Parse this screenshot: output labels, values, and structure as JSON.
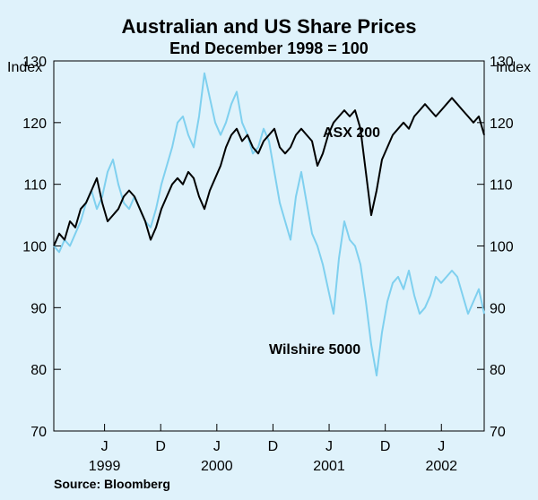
{
  "chart_data": {
    "type": "line",
    "title": "Australian and US Share Prices",
    "subtitle": "End December 1998 = 100",
    "y_unit_left": "Index",
    "y_unit_right": "Index",
    "ylim": [
      70,
      130
    ],
    "yticks": [
      70,
      80,
      90,
      100,
      110,
      120,
      130
    ],
    "xlim": [
      0,
      40
    ],
    "month_ticks": [
      {
        "label": "J",
        "month": 6
      },
      {
        "label": "D",
        "month": 12
      },
      {
        "label": "J",
        "month": 18
      },
      {
        "label": "D",
        "month": 24
      },
      {
        "label": "J",
        "month": 30
      },
      {
        "label": "D",
        "month": 36
      },
      {
        "label": "J",
        "month": 42
      }
    ],
    "year_labels": [
      {
        "label": "1999",
        "month": 6
      },
      {
        "label": "2000",
        "month": 18
      },
      {
        "label": "2001",
        "month": 30
      },
      {
        "label": "2002",
        "month": 42
      }
    ],
    "series": [
      {
        "name": "ASX 200",
        "color": "#000000",
        "x": [
          0,
          0.5,
          1,
          1.5,
          2,
          2.5,
          3,
          3.5,
          4,
          4.5,
          5,
          5.5,
          6,
          6.5,
          7,
          7.5,
          8,
          8.5,
          9,
          9.5,
          10,
          10.5,
          11,
          11.5,
          12,
          12.5,
          13,
          13.5,
          14,
          14.5,
          15,
          15.5,
          16,
          16.5,
          17,
          17.5,
          18,
          18.5,
          19,
          19.5,
          20,
          20.5,
          21,
          21.5,
          22,
          22.5,
          23,
          23.5,
          24,
          24.5,
          25,
          25.5,
          26,
          26.5,
          27,
          27.5,
          28,
          28.5,
          29,
          29.5,
          30,
          30.5,
          31,
          31.5,
          32,
          32.5,
          33,
          33.5,
          34,
          34.5,
          35,
          35.5,
          36,
          36.5,
          37,
          37.5,
          38,
          38.5,
          39,
          39.5,
          40
        ],
        "values": [
          100,
          102,
          101,
          104,
          103,
          106,
          107,
          109,
          111,
          107,
          104,
          105,
          106,
          108,
          109,
          108,
          106,
          104,
          101,
          103,
          106,
          108,
          110,
          111,
          110,
          112,
          111,
          108,
          106,
          109,
          111,
          113,
          116,
          118,
          119,
          117,
          118,
          116,
          115,
          117,
          118,
          119,
          116,
          115,
          116,
          118,
          119,
          118,
          117,
          113,
          115,
          118,
          120,
          121,
          122,
          121,
          122,
          119,
          112,
          105,
          109,
          114,
          116,
          118,
          119,
          120,
          119,
          121,
          122,
          123,
          122,
          121,
          122,
          123,
          124,
          123,
          122,
          121,
          120,
          121,
          118
        ]
      },
      {
        "name": "Wilshire 5000",
        "color": "#7fd0ef",
        "x": [
          0,
          0.5,
          1,
          1.5,
          2,
          2.5,
          3,
          3.5,
          4,
          4.5,
          5,
          5.5,
          6,
          6.5,
          7,
          7.5,
          8,
          8.5,
          9,
          9.5,
          10,
          10.5,
          11,
          11.5,
          12,
          12.5,
          13,
          13.5,
          14,
          14.5,
          15,
          15.5,
          16,
          16.5,
          17,
          17.5,
          18,
          18.5,
          19,
          19.5,
          20,
          20.5,
          21,
          21.5,
          22,
          22.5,
          23,
          23.5,
          24,
          24.5,
          25,
          25.5,
          26,
          26.5,
          27,
          27.5,
          28,
          28.5,
          29,
          29.5,
          30,
          30.5,
          31,
          31.5,
          32,
          32.5,
          33,
          33.5,
          34,
          34.5,
          35,
          35.5,
          36,
          36.5,
          37,
          37.5,
          38,
          38.5,
          39,
          39.5,
          40
        ],
        "values": [
          100,
          99,
          101,
          100,
          102,
          104,
          107,
          109,
          106,
          108,
          112,
          114,
          110,
          107,
          106,
          108,
          106,
          104,
          103,
          106,
          110,
          113,
          116,
          120,
          121,
          118,
          116,
          121,
          128,
          124,
          120,
          118,
          120,
          123,
          125,
          120,
          118,
          115,
          116,
          119,
          117,
          112,
          107,
          104,
          101,
          108,
          112,
          107,
          102,
          100,
          97,
          93,
          89,
          98,
          104,
          101,
          100,
          97,
          91,
          84,
          79,
          86,
          91,
          94,
          95,
          93,
          96,
          92,
          89,
          90,
          92,
          95,
          94,
          95,
          96,
          95,
          92,
          89,
          91,
          93,
          89
        ]
      }
    ],
    "annotations": [
      {
        "text": "ASX 200",
        "series": "ASX 200"
      },
      {
        "text": "Wilshire 5000",
        "series": "Wilshire 5000"
      }
    ],
    "source": "Source: Bloomberg"
  }
}
